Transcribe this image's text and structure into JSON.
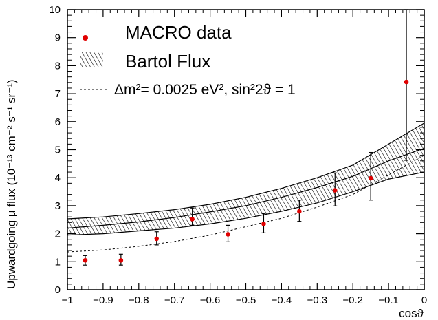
{
  "chart_data": {
    "type": "scatter",
    "title": "",
    "xlabel": "cosϑ",
    "ylabel": "Upwardgoing μ flux (10⁻¹³ cm⁻² s⁻¹ sr⁻¹)",
    "xlim": [
      -1,
      0
    ],
    "ylim": [
      0,
      10
    ],
    "x_ticks": [
      "−1",
      "−0.9",
      "−0.8",
      "−0.7",
      "−0.6",
      "−0.5",
      "−0.4",
      "−0.3",
      "−0.2",
      "−0.1",
      "0"
    ],
    "y_ticks": [
      "0",
      "1",
      "2",
      "3",
      "4",
      "5",
      "6",
      "7",
      "8",
      "9",
      "10"
    ],
    "grid": false,
    "legend_position": "top-left",
    "legend": [
      {
        "label": "MACRO data",
        "style": "marker"
      },
      {
        "label": "Bartol Flux",
        "style": "hatched"
      },
      {
        "label": "Δm²= 0.0025 eV², sin²2ϑ = 1",
        "style": "dashed"
      }
    ],
    "series": [
      {
        "name": "MACRO data",
        "type": "points-with-errors",
        "color": "#e00000",
        "x": [
          -0.95,
          -0.85,
          -0.75,
          -0.65,
          -0.55,
          -0.45,
          -0.35,
          -0.25,
          -0.15,
          -0.05
        ],
        "y": [
          1.05,
          1.05,
          1.82,
          2.52,
          1.98,
          2.35,
          2.8,
          3.55,
          3.98,
          7.42
        ],
        "err_low": [
          0.17,
          0.17,
          0.22,
          0.22,
          0.27,
          0.32,
          0.36,
          0.56,
          0.78,
          2.8
        ],
        "err_high": [
          0.17,
          0.22,
          0.25,
          0.4,
          0.32,
          0.37,
          0.4,
          0.62,
          0.92,
          2.58
        ]
      },
      {
        "name": "Bartol Flux",
        "type": "band",
        "x": [
          -1.0,
          -0.9,
          -0.8,
          -0.7,
          -0.6,
          -0.5,
          -0.4,
          -0.3,
          -0.2,
          -0.1,
          0.0
        ],
        "y_low": [
          1.95,
          2.0,
          2.1,
          2.2,
          2.35,
          2.55,
          2.8,
          3.1,
          3.5,
          3.95,
          4.2
        ],
        "y_mid": [
          2.2,
          2.3,
          2.42,
          2.58,
          2.78,
          3.0,
          3.3,
          3.65,
          4.05,
          4.6,
          5.05
        ],
        "y_high": [
          2.53,
          2.6,
          2.72,
          2.86,
          3.05,
          3.3,
          3.62,
          4.0,
          4.45,
          5.2,
          5.95
        ]
      },
      {
        "name": "Δm²= 0.0025 eV², sin²2ϑ = 1",
        "type": "dashed-line",
        "x": [
          -1.0,
          -0.9,
          -0.8,
          -0.7,
          -0.6,
          -0.5,
          -0.4,
          -0.3,
          -0.2,
          -0.1,
          0.0
        ],
        "y": [
          1.35,
          1.42,
          1.55,
          1.72,
          1.95,
          2.25,
          2.55,
          2.95,
          3.4,
          4.1,
          4.8
        ]
      }
    ]
  }
}
